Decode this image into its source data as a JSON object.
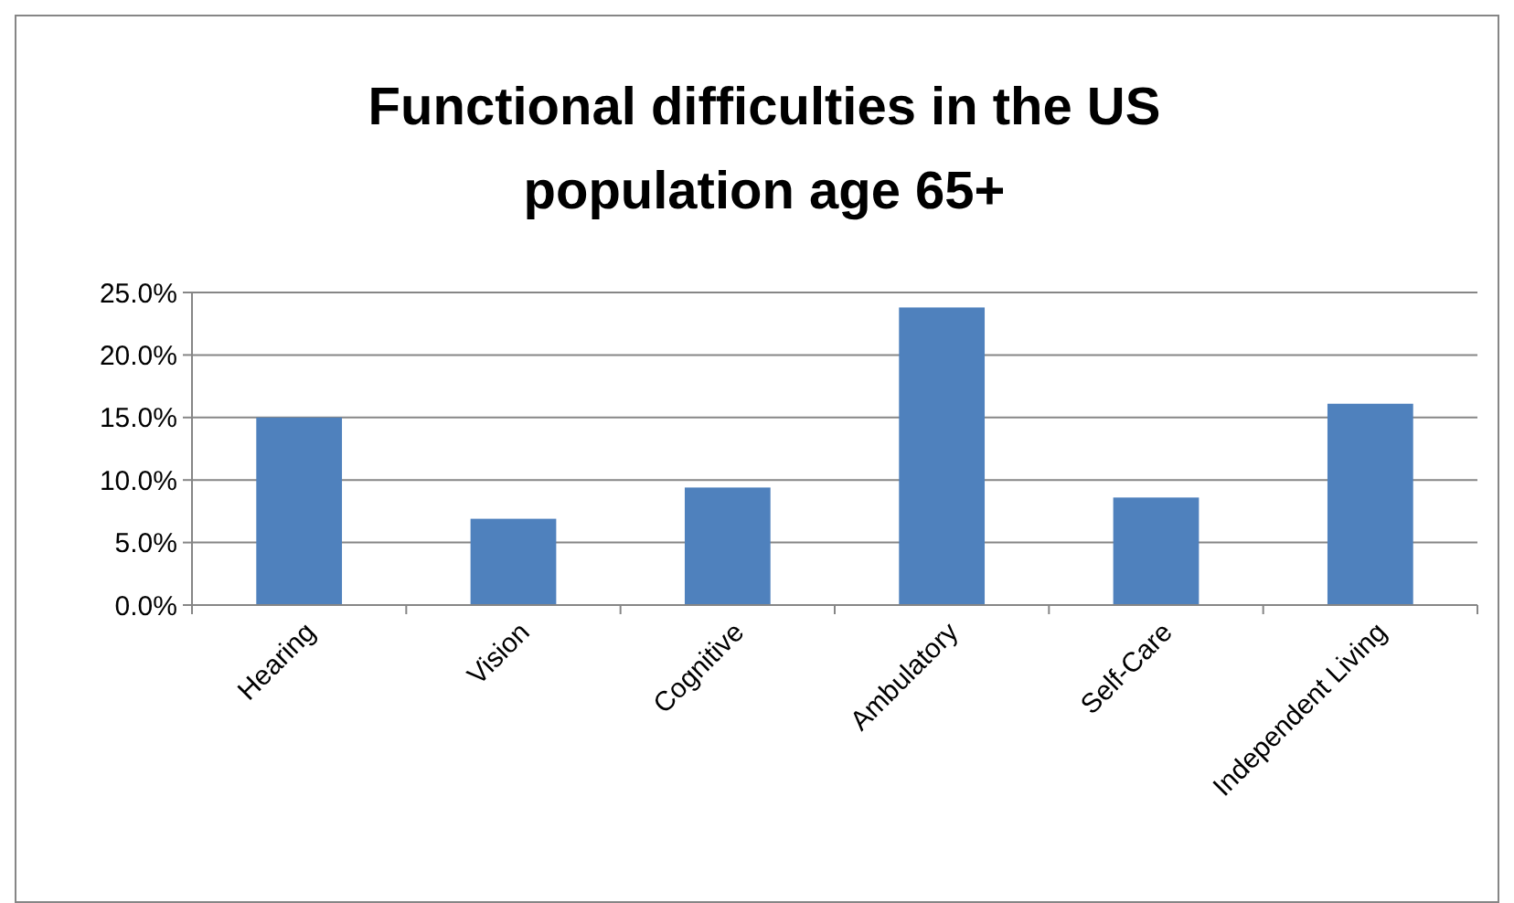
{
  "chart_data": {
    "type": "bar",
    "title": "Functional difficulties in the US population age 65+",
    "categories": [
      "Hearing",
      "Vision",
      "Cognitive",
      "Ambulatory",
      "Self-Care",
      "Independent Living"
    ],
    "values": [
      15.0,
      6.9,
      9.4,
      23.8,
      8.6,
      16.1
    ],
    "color": "#4f81bd",
    "ylim": [
      0,
      25
    ],
    "yticks": [
      {
        "value": 0,
        "label": "0.0%"
      },
      {
        "value": 5,
        "label": "5.0%"
      },
      {
        "value": 10,
        "label": "10.0%"
      },
      {
        "value": 15,
        "label": "15.0%"
      },
      {
        "value": 20,
        "label": "20.0%"
      },
      {
        "value": 25,
        "label": "25.0%"
      }
    ],
    "grid": "y"
  }
}
